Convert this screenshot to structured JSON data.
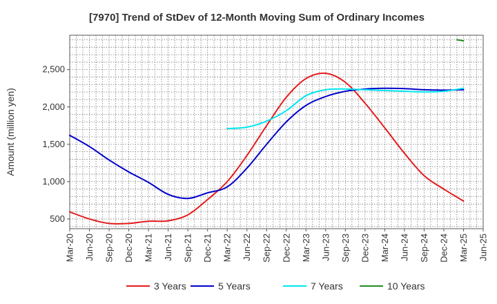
{
  "chart_data": {
    "type": "line",
    "title": "[7970]  Trend of StDev of 12-Month Moving Sum of Ordinary Incomes",
    "xlabel": "",
    "ylabel": "Amount (million yen)",
    "ylim": [
      370,
      2960
    ],
    "yticks": [
      500,
      1000,
      1500,
      2000,
      2500
    ],
    "ytick_labels": [
      "500",
      "1,000",
      "1,500",
      "2,000",
      "2,500"
    ],
    "categories": [
      "Mar-20",
      "Jun-20",
      "Sep-20",
      "Dec-20",
      "Mar-21",
      "Jun-21",
      "Sep-21",
      "Dec-21",
      "Mar-22",
      "Jun-22",
      "Sep-22",
      "Dec-22",
      "Mar-23",
      "Jun-23",
      "Sep-23",
      "Dec-23",
      "Mar-24",
      "Jun-24",
      "Sep-24",
      "Dec-24",
      "Mar-25",
      "Jun-25"
    ],
    "grid": true,
    "legend_position": "bottom",
    "series": [
      {
        "name": "3 Years",
        "color": "#e41a1c",
        "values": [
          595,
          500,
          440,
          440,
          470,
          475,
          555,
          760,
          1000,
          1350,
          1750,
          2130,
          2380,
          2450,
          2330,
          2050,
          1720,
          1380,
          1080,
          900,
          740,
          null
        ]
      },
      {
        "name": "5 Years",
        "color": "#0000cc",
        "values": [
          1620,
          1470,
          1290,
          1130,
          990,
          830,
          775,
          850,
          930,
          1180,
          1500,
          1800,
          2020,
          2140,
          2210,
          2240,
          2250,
          2245,
          2230,
          2225,
          2230,
          null
        ]
      },
      {
        "name": "7 Years",
        "color": "#00e5ee",
        "values": [
          null,
          null,
          null,
          null,
          null,
          null,
          null,
          null,
          1710,
          1730,
          1810,
          1950,
          2150,
          2230,
          2240,
          2230,
          2220,
          2210,
          2200,
          2210,
          2250,
          null
        ]
      },
      {
        "name": "10 Years",
        "color": "#228b22",
        "values": [
          null,
          null,
          null,
          null,
          null,
          null,
          null,
          null,
          null,
          null,
          null,
          null,
          null,
          null,
          null,
          null,
          null,
          null,
          null,
          null,
          2885,
          null
        ],
        "segment_start": 2900
      }
    ]
  }
}
